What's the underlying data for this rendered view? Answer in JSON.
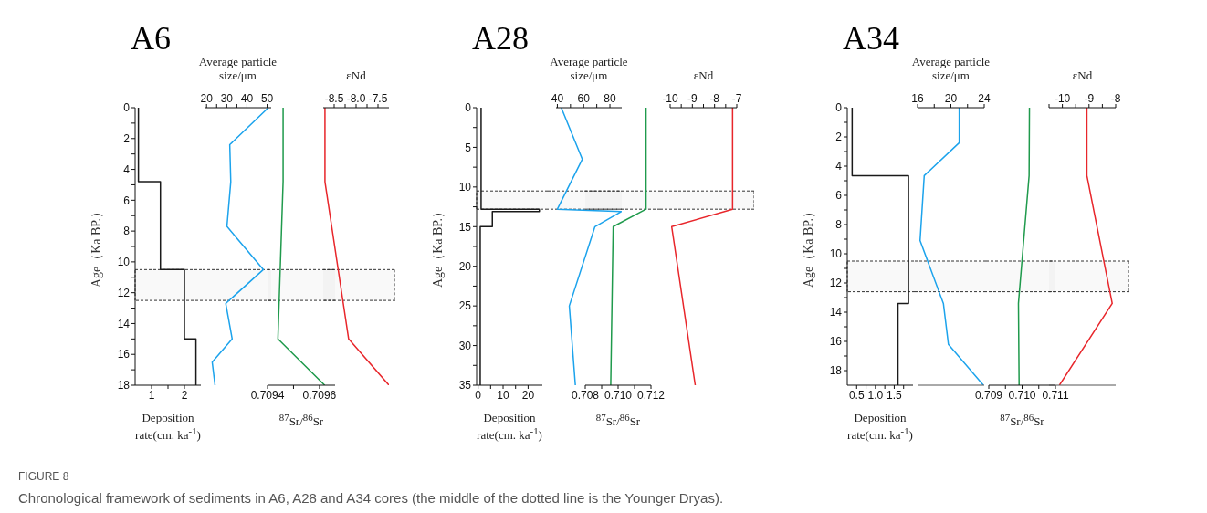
{
  "chart_data": [
    {
      "type": "line",
      "title": "A6",
      "xlabel": "Deposition rate(cm. ka$^{-1}$)",
      "ylabel": "Age（Ka BP.）",
      "xlim": [
        0.5,
        2.5
      ],
      "xticks": [
        1,
        {
          "value": 1.5,
          "label": null
        },
        2
      ],
      "ylim": [
        18,
        0
      ],
      "yticks": [
        0,
        {
          "value": 1,
          "label": null
        },
        2,
        {
          "value": 3,
          "label": null
        },
        4,
        {
          "value": 5,
          "label": null
        },
        6,
        {
          "value": 7,
          "label": null
        },
        8,
        {
          "value": 9,
          "label": null
        },
        10,
        {
          "value": 11,
          "label": null
        },
        12,
        {
          "value": 13,
          "label": null
        },
        14,
        {
          "value": 15,
          "label": null
        },
        16,
        {
          "value": 17,
          "label": null
        },
        18
      ],
      "bands": [
        {
          "axis": "y",
          "from": 10.5,
          "to": 12.5
        }
      ],
      "series": [
        {
          "color": "#1a1a1a",
          "x": [
            0.6,
            0.6,
            1.27,
            1.27,
            2.0,
            2.0,
            2.35,
            2.35
          ],
          "values": [
            0,
            4.8,
            4.8,
            10.5,
            10.5,
            15.0,
            15.0,
            18
          ]
        }
      ],
      "annotations": [
        "FIGURE 8",
        "Chronological framework of sediments in A6, A28 and A34 cores (the middle of the dotted line is the Younger Dryas)."
      ]
    },
    {
      "type": "line",
      "xlabel": "Average particle size/μm",
      "tick_labels": "x",
      "xlim": [
        19,
        52
      ],
      "xticks": [
        20,
        {
          "value": 25,
          "label": null
        },
        30,
        {
          "value": 35,
          "label": null
        },
        40,
        {
          "value": 45,
          "label": null
        },
        50
      ],
      "ylim": [
        18,
        0
      ],
      "bands": [
        {
          "axis": "y",
          "from": 10.5,
          "to": 12.5
        }
      ],
      "series": [
        {
          "color": "#1ca3ec",
          "x": [
            50.6,
            31.5,
            32,
            30.1,
            48.1,
            29.5,
            32.7,
            22.8,
            24.2
          ],
          "values": [
            0,
            2.4,
            4.8,
            7.7,
            10.5,
            12.7,
            15.0,
            16.5,
            18
          ]
        }
      ]
    },
    {
      "type": "line",
      "xlabel": "$^{87}$Sr/$^{86}$Sr",
      "tick_labels": "x",
      "xlim": [
        0.7094,
        0.70966
      ],
      "xticks": [
        0.7094,
        {
          "value": 0.7095,
          "label": null
        },
        0.7096
      ],
      "ylim": [
        18,
        0
      ],
      "bands": [
        {
          "axis": "y",
          "from": 10.5,
          "to": 12.5
        }
      ],
      "series": [
        {
          "color": "#1f9a4c",
          "x": [
            0.70946,
            0.70946,
            0.70944,
            0.70962
          ],
          "values": [
            0,
            4.8,
            15.0,
            18
          ]
        }
      ]
    },
    {
      "type": "line",
      "xlabel": "εNd",
      "tick_labels": "x",
      "xlim": [
        -8.75,
        -7.25
      ],
      "xticks": [
        -8.5,
        {
          "value": -8.25,
          "label": null
        },
        {
          "value": -8,
          "label": "-8.0"
        },
        {
          "value": -7.75,
          "label": null
        },
        -7.5
      ],
      "ylim": [
        18,
        0
      ],
      "bands": [
        {
          "axis": "y",
          "from": 10.5,
          "to": 12.5
        }
      ],
      "series": [
        {
          "color": "#e8262b",
          "x": [
            -8.71,
            -8.71,
            -8.17,
            -7.25
          ],
          "values": [
            0,
            4.8,
            15.0,
            18
          ]
        }
      ]
    },
    {
      "type": "line",
      "title": "A28",
      "xlabel": "Deposition rate(cm. ka$^{-1}$)",
      "ylabel": "Age（Ka BP.）",
      "xlim": [
        -0.6,
        25.7
      ],
      "xticks": [
        0,
        {
          "value": 5,
          "label": null
        },
        10,
        {
          "value": 15,
          "label": null
        },
        20
      ],
      "ylim": [
        35,
        0
      ],
      "yticks": [
        0,
        {
          "value": 2.5,
          "label": null
        },
        5,
        {
          "value": 7.5,
          "label": null
        },
        10,
        {
          "value": 12.5,
          "label": null
        },
        15,
        {
          "value": 17.5,
          "label": null
        },
        20,
        {
          "value": 22.5,
          "label": null
        },
        25,
        {
          "value": 27.5,
          "label": null
        },
        30,
        {
          "value": 32.5,
          "label": null
        },
        35
      ],
      "bands": [
        {
          "axis": "y",
          "from": 10.5,
          "to": 12.8
        }
      ],
      "series": [
        {
          "color": "#1a1a1a",
          "x": [
            1.2,
            1.2,
            24.5,
            24.5,
            5.7,
            5.7,
            0.85,
            0.85
          ],
          "values": [
            0,
            12.8,
            12.8,
            13.1,
            13.1,
            15,
            15,
            35
          ]
        }
      ]
    },
    {
      "type": "line",
      "xlabel": "Average particle size/μm",
      "tick_labels": "x",
      "xlim": [
        39,
        89
      ],
      "xticks": [
        40,
        {
          "value": 50,
          "label": null
        },
        60,
        {
          "value": 70,
          "label": null
        },
        80
      ],
      "ylim": [
        35,
        0
      ],
      "bands": [
        {
          "axis": "y",
          "from": 10.5,
          "to": 12.8
        }
      ],
      "series": [
        {
          "color": "#1ca3ec",
          "x": [
            43,
            59,
            40,
            88.6,
            68.6,
            49.1,
            53.7
          ],
          "values": [
            0,
            6.5,
            12.8,
            13.1,
            15,
            25,
            35
          ]
        }
      ]
    },
    {
      "type": "line",
      "xlabel": "$^{87}$Sr/$^{86}$Sr",
      "tick_labels": "x",
      "xlim": [
        0.708,
        0.712
      ],
      "xticks": [
        0.708,
        {
          "value": 0.709,
          "label": null
        },
        {
          "value": 0.71,
          "label": "0.710"
        },
        {
          "value": 0.711,
          "label": null
        },
        0.712
      ],
      "ylim": [
        35,
        0
      ],
      "bands": [
        {
          "axis": "y",
          "from": 10.5,
          "to": 12.8
        }
      ],
      "series": [
        {
          "color": "#1f9a4c",
          "x": [
            0.7117,
            0.7117,
            0.7097,
            0.70955
          ],
          "values": [
            0,
            12.8,
            15,
            35
          ]
        }
      ]
    },
    {
      "type": "line",
      "xlabel": "εNd",
      "tick_labels": "x",
      "xlim": [
        -10,
        -7
      ],
      "xticks": [
        -10,
        {
          "value": -9.5,
          "label": null
        },
        -9,
        {
          "value": -8.5,
          "label": null
        },
        -8,
        {
          "value": -7.5,
          "label": null
        },
        -7
      ],
      "ylim": [
        35,
        0
      ],
      "bands": [
        {
          "axis": "y",
          "from": 10.5,
          "to": 12.8
        }
      ],
      "series": [
        {
          "color": "#e8262b",
          "x": [
            -7.19,
            -7.19,
            -9.93,
            -8.87
          ],
          "values": [
            0,
            12.8,
            15,
            35
          ]
        }
      ]
    },
    {
      "type": "line",
      "title": "A34",
      "xlabel": "Deposition rate(cm. ka$^{-1}$)",
      "ylabel": "Age（Ka BP.）",
      "xlim": [
        0.25,
        2
      ],
      "xticks": [
        0.5,
        {
          "value": 0.75,
          "label": null
        },
        {
          "value": 1,
          "label": "1.0"
        },
        {
          "value": 1.25,
          "label": null
        },
        1.5,
        {
          "value": 1.75,
          "label": null
        }
      ],
      "ylim": [
        19,
        0
      ],
      "yticks": [
        0,
        {
          "value": 1,
          "label": null
        },
        2,
        {
          "value": 3,
          "label": null
        },
        4,
        {
          "value": 5,
          "label": null
        },
        6,
        {
          "value": 7,
          "label": null
        },
        8,
        {
          "value": 9,
          "label": null
        },
        10,
        {
          "value": 11,
          "label": null
        },
        12,
        {
          "value": 13,
          "label": null
        },
        14,
        {
          "value": 15,
          "label": null
        },
        16,
        {
          "value": 17,
          "label": null
        },
        18
      ],
      "bands": [
        {
          "axis": "y",
          "from": 10.5,
          "to": 12.6
        }
      ],
      "series": [
        {
          "color": "#1a1a1a",
          "x": [
            0.38,
            0.38,
            1.88,
            1.88,
            1.6,
            1.6
          ],
          "values": [
            0,
            4.65,
            4.65,
            13.4,
            13.4,
            19
          ]
        }
      ]
    },
    {
      "type": "line",
      "xlabel": "Average particle size/μm",
      "tick_labels": "x",
      "xlim": [
        16,
        24
      ],
      "xticks": [
        16,
        {
          "value": 18,
          "label": null
        },
        20,
        {
          "value": 22,
          "label": null
        },
        24
      ],
      "ylim": [
        19,
        0
      ],
      "bands": [
        {
          "axis": "y",
          "from": 10.5,
          "to": 12.6
        }
      ],
      "series": [
        {
          "color": "#1ca3ec",
          "x": [
            21,
            21,
            16.8,
            16.3,
            19.1,
            19.7,
            23.9
          ],
          "values": [
            0,
            2.4,
            4.65,
            9.1,
            13.4,
            16.2,
            19
          ]
        }
      ]
    },
    {
      "type": "line",
      "xlabel": "$^{87}$Sr/$^{86}$Sr",
      "tick_labels": "x",
      "xlim": [
        0.709,
        0.711
      ],
      "xticks": [
        0.709,
        {
          "value": 0.7095,
          "label": null
        },
        {
          "value": 0.71,
          "label": "0.710"
        },
        {
          "value": 0.7105,
          "label": null
        },
        0.711
      ],
      "ylim": [
        19,
        0
      ],
      "bands": [
        {
          "axis": "y",
          "from": 10.5,
          "to": 12.6
        }
      ],
      "series": [
        {
          "color": "#1f9a4c",
          "x": [
            0.71022,
            0.71021,
            0.70989,
            0.70991
          ],
          "values": [
            0,
            4.65,
            13.4,
            19
          ]
        }
      ]
    },
    {
      "type": "line",
      "xlabel": "εNd",
      "tick_labels": "x",
      "xlim": [
        -10.5,
        -8
      ],
      "xticks": [
        {
          "value": -10.5,
          "label": null
        },
        -10,
        {
          "value": -9.5,
          "label": null
        },
        -9,
        {
          "value": -8.5,
          "label": null
        },
        -8
      ],
      "ylim": [
        19,
        0
      ],
      "bands": [
        {
          "axis": "y",
          "from": 10.5,
          "to": 12.6
        }
      ],
      "series": [
        {
          "color": "#e8262b",
          "x": [
            -9.08,
            -9.08,
            -8.13,
            -10.11
          ],
          "values": [
            0,
            4.65,
            13.4,
            19
          ]
        }
      ]
    }
  ]
}
